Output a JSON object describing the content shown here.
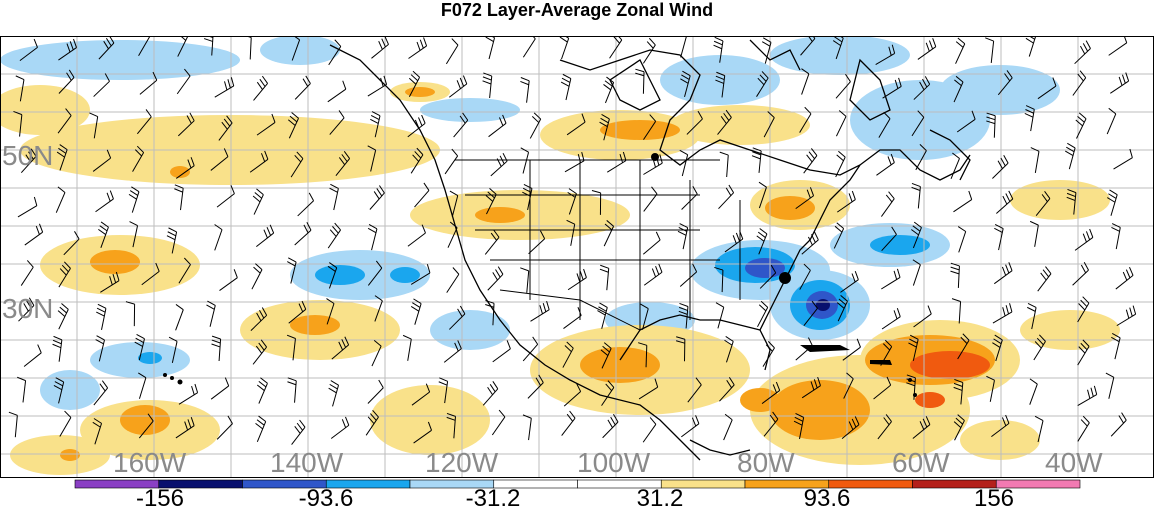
{
  "title": "F072 Layer-Average Zonal Wind",
  "lon_labels": [
    "160W",
    "140W",
    "120W",
    "100W",
    "80W",
    "60W",
    "40W"
  ],
  "lat_labels": [
    "50N",
    "30N"
  ],
  "colorbar": {
    "colors": [
      "#8a3fc4",
      "#08106e",
      "#2f56c9",
      "#1aa6ee",
      "#a9d8f6",
      "#ffffff",
      "#ffffff",
      "#f9e18a",
      "#f7a21b",
      "#f05a0f",
      "#b4201a",
      "#f27ab2"
    ],
    "labels": [
      "-156",
      "-93.6",
      "-31.2",
      "31.2",
      "93.6",
      "156"
    ]
  },
  "colors": {
    "positive_light": "#f9e18a",
    "positive_mid": "#f7a21b",
    "positive_strong": "#f05a0f",
    "negative_light": "#a9d8f6",
    "negative_mid": "#1aa6ee",
    "negative_strong": "#2f56c9",
    "negative_max": "#08106e"
  }
}
